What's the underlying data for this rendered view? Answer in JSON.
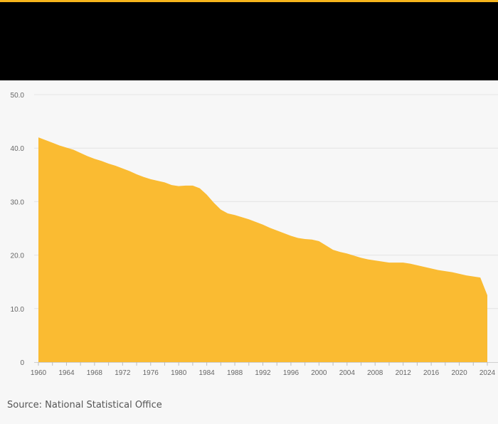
{
  "source_note": "Source: National Statistical Office",
  "colors": {
    "accent": "#f6b51c",
    "area_fill": "#fabb32",
    "header_band": "#000000",
    "background": "#f7f7f7",
    "grid": "#e4e4e4",
    "tick_text": "#666666"
  },
  "chart_data": {
    "type": "area",
    "title": "",
    "xlabel": "",
    "ylabel": "",
    "xlim": [
      1960,
      2024
    ],
    "ylim": [
      0,
      50
    ],
    "grid": true,
    "legend": "none",
    "x_ticks": [
      1960,
      1964,
      1968,
      1972,
      1976,
      1980,
      1984,
      1988,
      1992,
      1996,
      2000,
      2004,
      2008,
      2012,
      2016,
      2020,
      2024
    ],
    "y_ticks": [
      0,
      10,
      20,
      30,
      40,
      50
    ],
    "y_tick_labels": [
      "0",
      "10.0",
      "20.0",
      "30.0",
      "40.0",
      "50.0"
    ],
    "x": [
      1960,
      1961,
      1962,
      1963,
      1964,
      1965,
      1966,
      1967,
      1968,
      1969,
      1970,
      1971,
      1972,
      1973,
      1974,
      1975,
      1976,
      1977,
      1978,
      1979,
      1980,
      1981,
      1982,
      1983,
      1984,
      1985,
      1986,
      1987,
      1988,
      1989,
      1990,
      1991,
      1992,
      1993,
      1994,
      1995,
      1996,
      1997,
      1998,
      1999,
      2000,
      2001,
      2002,
      2003,
      2004,
      2005,
      2006,
      2007,
      2008,
      2009,
      2010,
      2011,
      2012,
      2013,
      2014,
      2015,
      2016,
      2017,
      2018,
      2019,
      2020,
      2021,
      2022,
      2023,
      2024
    ],
    "values": [
      42.0,
      41.5,
      41.0,
      40.5,
      40.1,
      39.7,
      39.1,
      38.5,
      38.0,
      37.6,
      37.1,
      36.7,
      36.2,
      35.7,
      35.1,
      34.6,
      34.2,
      33.9,
      33.6,
      33.1,
      32.9,
      33.0,
      33.0,
      32.5,
      31.3,
      29.8,
      28.5,
      27.8,
      27.5,
      27.1,
      26.7,
      26.2,
      25.7,
      25.1,
      24.6,
      24.1,
      23.6,
      23.2,
      23.0,
      22.9,
      22.6,
      21.8,
      21.0,
      20.6,
      20.3,
      19.9,
      19.5,
      19.2,
      19.0,
      18.8,
      18.6,
      18.6,
      18.6,
      18.4,
      18.1,
      17.8,
      17.5,
      17.2,
      17.0,
      16.8,
      16.5,
      16.2,
      16.0,
      15.8,
      12.5
    ]
  }
}
